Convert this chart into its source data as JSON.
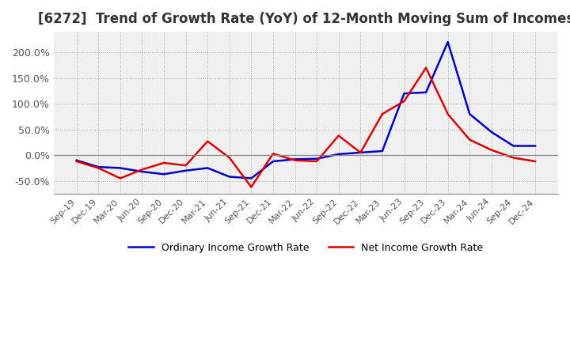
{
  "title": "[6272]  Trend of Growth Rate (YoY) of 12-Month Moving Sum of Incomes",
  "title_fontsize": 12,
  "ylim": [
    -75,
    240
  ],
  "yticks": [
    -50,
    0,
    50,
    100,
    150,
    200
  ],
  "background_color": "#ffffff",
  "plot_bg_color": "#f0f0f0",
  "grid_color": "#aaaaaa",
  "ordinary_color": "#0000cc",
  "net_color": "#dd0000",
  "legend_labels": [
    "Ordinary Income Growth Rate",
    "Net Income Growth Rate"
  ],
  "x_labels": [
    "Sep-19",
    "Dec-19",
    "Mar-20",
    "Jun-20",
    "Sep-20",
    "Dec-20",
    "Mar-21",
    "Jun-21",
    "Sep-21",
    "Dec-21",
    "Mar-22",
    "Jun-22",
    "Sep-22",
    "Dec-22",
    "Mar-23",
    "Jun-23",
    "Sep-23",
    "Dec-23",
    "Mar-24",
    "Jun-24",
    "Sep-24",
    "Dec-24"
  ],
  "ordinary_values": [
    -10,
    -23,
    -25,
    -32,
    -37,
    -30,
    -25,
    -42,
    -45,
    -12,
    -8,
    -7,
    2,
    5,
    8,
    120,
    122,
    220,
    80,
    45,
    18,
    18
  ],
  "net_values": [
    -12,
    -25,
    -45,
    -28,
    -15,
    -20,
    27,
    -5,
    -62,
    3,
    -10,
    -12,
    38,
    5,
    80,
    105,
    170,
    80,
    30,
    10,
    -5,
    -12
  ]
}
